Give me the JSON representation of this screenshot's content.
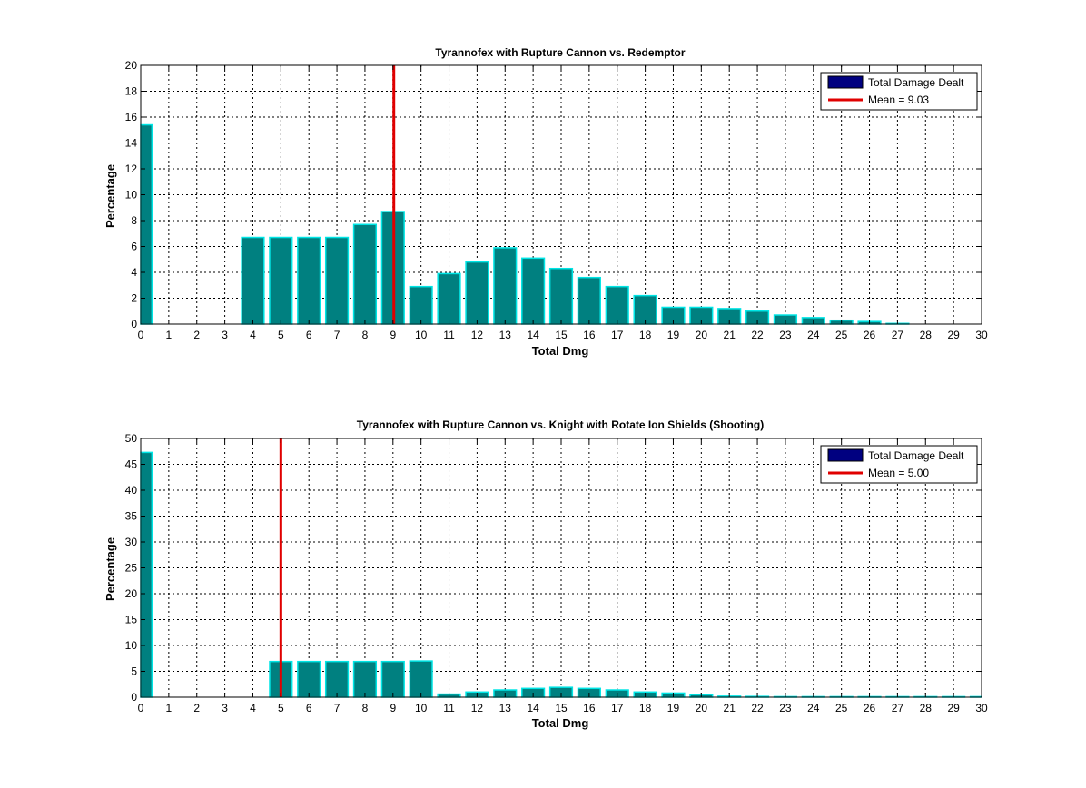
{
  "chart_data": [
    {
      "type": "bar",
      "title": "Tyrannofex with Rupture Cannon vs. Redemptor",
      "xlabel": "Total Dmg",
      "ylabel": "Percentage",
      "xlim": [
        0,
        30
      ],
      "ylim": [
        0,
        20
      ],
      "xticks": [
        0,
        1,
        2,
        3,
        4,
        5,
        6,
        7,
        8,
        9,
        10,
        11,
        12,
        13,
        14,
        15,
        16,
        17,
        18,
        19,
        20,
        21,
        22,
        23,
        24,
        25,
        26,
        27,
        28,
        29,
        30
      ],
      "yticks": [
        0,
        2,
        4,
        6,
        8,
        10,
        12,
        14,
        16,
        18,
        20
      ],
      "grid": true,
      "legend_position": "top-right",
      "bar_color": "#008080",
      "bar_edge_color": "#00e5e5",
      "mean_color": "#e00000",
      "legend_patch_color": "#000080",
      "series": [
        {
          "name": "Total Damage Dealt",
          "x": [
            0,
            1,
            2,
            3,
            4,
            5,
            6,
            7,
            8,
            9,
            10,
            11,
            12,
            13,
            14,
            15,
            16,
            17,
            18,
            19,
            20,
            21,
            22,
            23,
            24,
            25,
            26,
            27,
            28,
            29,
            30
          ],
          "values": [
            15.4,
            0,
            0,
            0,
            6.7,
            6.7,
            6.7,
            6.7,
            7.7,
            8.7,
            2.9,
            3.9,
            4.8,
            5.9,
            5.1,
            4.3,
            3.6,
            2.9,
            2.2,
            1.3,
            1.3,
            1.2,
            1.0,
            0.7,
            0.5,
            0.3,
            0.2,
            0.05,
            0,
            0,
            0
          ]
        }
      ],
      "mean": {
        "label": "Mean = 9.03",
        "value": 9.03
      }
    },
    {
      "type": "bar",
      "title": "Tyrannofex with Rupture Cannon vs. Knight with Rotate Ion Shields (Shooting)",
      "xlabel": "Total Dmg",
      "ylabel": "Percentage",
      "xlim": [
        0,
        30
      ],
      "ylim": [
        0,
        50
      ],
      "xticks": [
        0,
        1,
        2,
        3,
        4,
        5,
        6,
        7,
        8,
        9,
        10,
        11,
        12,
        13,
        14,
        15,
        16,
        17,
        18,
        19,
        20,
        21,
        22,
        23,
        24,
        25,
        26,
        27,
        28,
        29,
        30
      ],
      "yticks": [
        0,
        5,
        10,
        15,
        20,
        25,
        30,
        35,
        40,
        45,
        50
      ],
      "grid": true,
      "legend_position": "top-right",
      "bar_color": "#008080",
      "bar_edge_color": "#00e5e5",
      "mean_color": "#e00000",
      "legend_patch_color": "#000080",
      "series": [
        {
          "name": "Total Damage Dealt",
          "x": [
            0,
            1,
            2,
            3,
            4,
            5,
            6,
            7,
            8,
            9,
            10,
            11,
            12,
            13,
            14,
            15,
            16,
            17,
            18,
            19,
            20,
            21,
            22,
            23,
            24,
            25,
            26,
            27,
            28,
            29,
            30
          ],
          "values": [
            47.3,
            0,
            0,
            0,
            0,
            6.9,
            6.9,
            6.9,
            6.9,
            6.9,
            7.0,
            0.6,
            1.0,
            1.4,
            1.7,
            1.9,
            1.7,
            1.4,
            1.0,
            0.8,
            0.5,
            0.2,
            0.15,
            0.1,
            0.1,
            0.1,
            0.1,
            0.1,
            0.1,
            0.1,
            0.1
          ]
        }
      ],
      "mean": {
        "label": "Mean = 5.00",
        "value": 5.0
      }
    }
  ]
}
